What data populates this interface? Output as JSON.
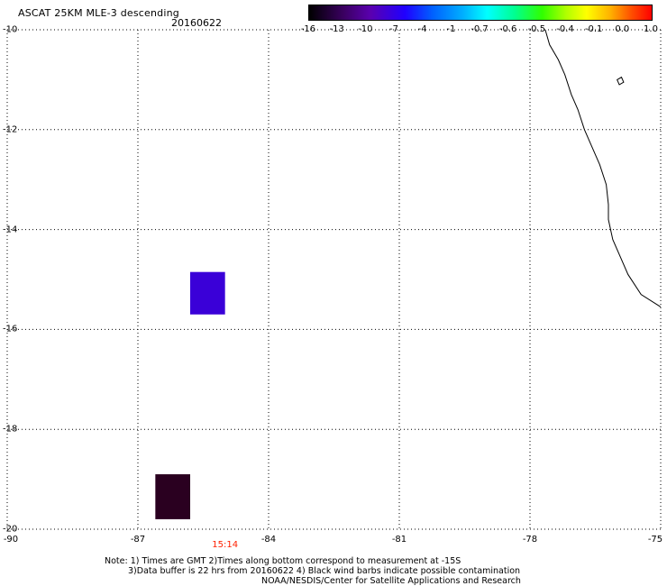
{
  "title": "ASCAT 25KM MLE-3 descending",
  "date": "20160622",
  "colorbar": {
    "labels": [
      "-16",
      "-13",
      "-10",
      "-7",
      "-4",
      "-1",
      "-0.7",
      "-0.6",
      "-0.5",
      "-0.4",
      "-0.1",
      "0.0",
      "1.0"
    ]
  },
  "map": {
    "lon_range": [
      -90,
      -75
    ],
    "lat_range": [
      -20,
      -10
    ],
    "x_ticks": [
      -90,
      -87,
      -84,
      -81,
      -78,
      -75
    ],
    "y_ticks": [
      -10,
      -12,
      -14,
      -16,
      -18,
      -20
    ],
    "x_tick_labels": [
      "-90",
      "-87",
      "-84",
      "-81",
      "-78",
      "-75"
    ],
    "y_tick_labels": [
      "-10",
      "-12",
      "-14",
      "-16",
      "-18",
      "-20"
    ],
    "grid": true,
    "time_marker": {
      "label": "15:14",
      "lon": -85
    },
    "data_cells": [
      {
        "lon_min": -85.8,
        "lon_max": -85.0,
        "lat_min": -15.7,
        "lat_max": -14.85,
        "color": "#3a00d8"
      },
      {
        "lon_min": -86.6,
        "lon_max": -85.8,
        "lat_min": -19.8,
        "lat_max": -18.9,
        "color": "#2a0020"
      }
    ],
    "coastline": [
      [
        -77.65,
        -10.0
      ],
      [
        -77.55,
        -10.3
      ],
      [
        -77.35,
        -10.6
      ],
      [
        -77.2,
        -10.9
      ],
      [
        -77.05,
        -11.3
      ],
      [
        -76.9,
        -11.6
      ],
      [
        -76.75,
        -12.0
      ],
      [
        -76.6,
        -12.3
      ],
      [
        -76.4,
        -12.7
      ],
      [
        -76.25,
        -13.1
      ],
      [
        -76.2,
        -13.5
      ],
      [
        -76.2,
        -13.8
      ],
      [
        -76.1,
        -14.2
      ],
      [
        -75.95,
        -14.5
      ],
      [
        -75.75,
        -14.9
      ],
      [
        -75.45,
        -15.3
      ],
      [
        -75.0,
        -15.55
      ]
    ],
    "island": [
      [
        -76.0,
        -11.0
      ],
      [
        -75.9,
        -10.95
      ],
      [
        -75.85,
        -11.05
      ],
      [
        -75.95,
        -11.1
      ]
    ]
  },
  "notes": {
    "line1": "Note: 1) Times are GMT 2)Times along bottom correspond to measurement at -15S",
    "line2": "3)Data buffer is 22 hrs from 20160622 4) Black wind barbs indicate possible contamination",
    "line3": "NOAA/NESDIS/Center for Satellite Applications and Research"
  }
}
